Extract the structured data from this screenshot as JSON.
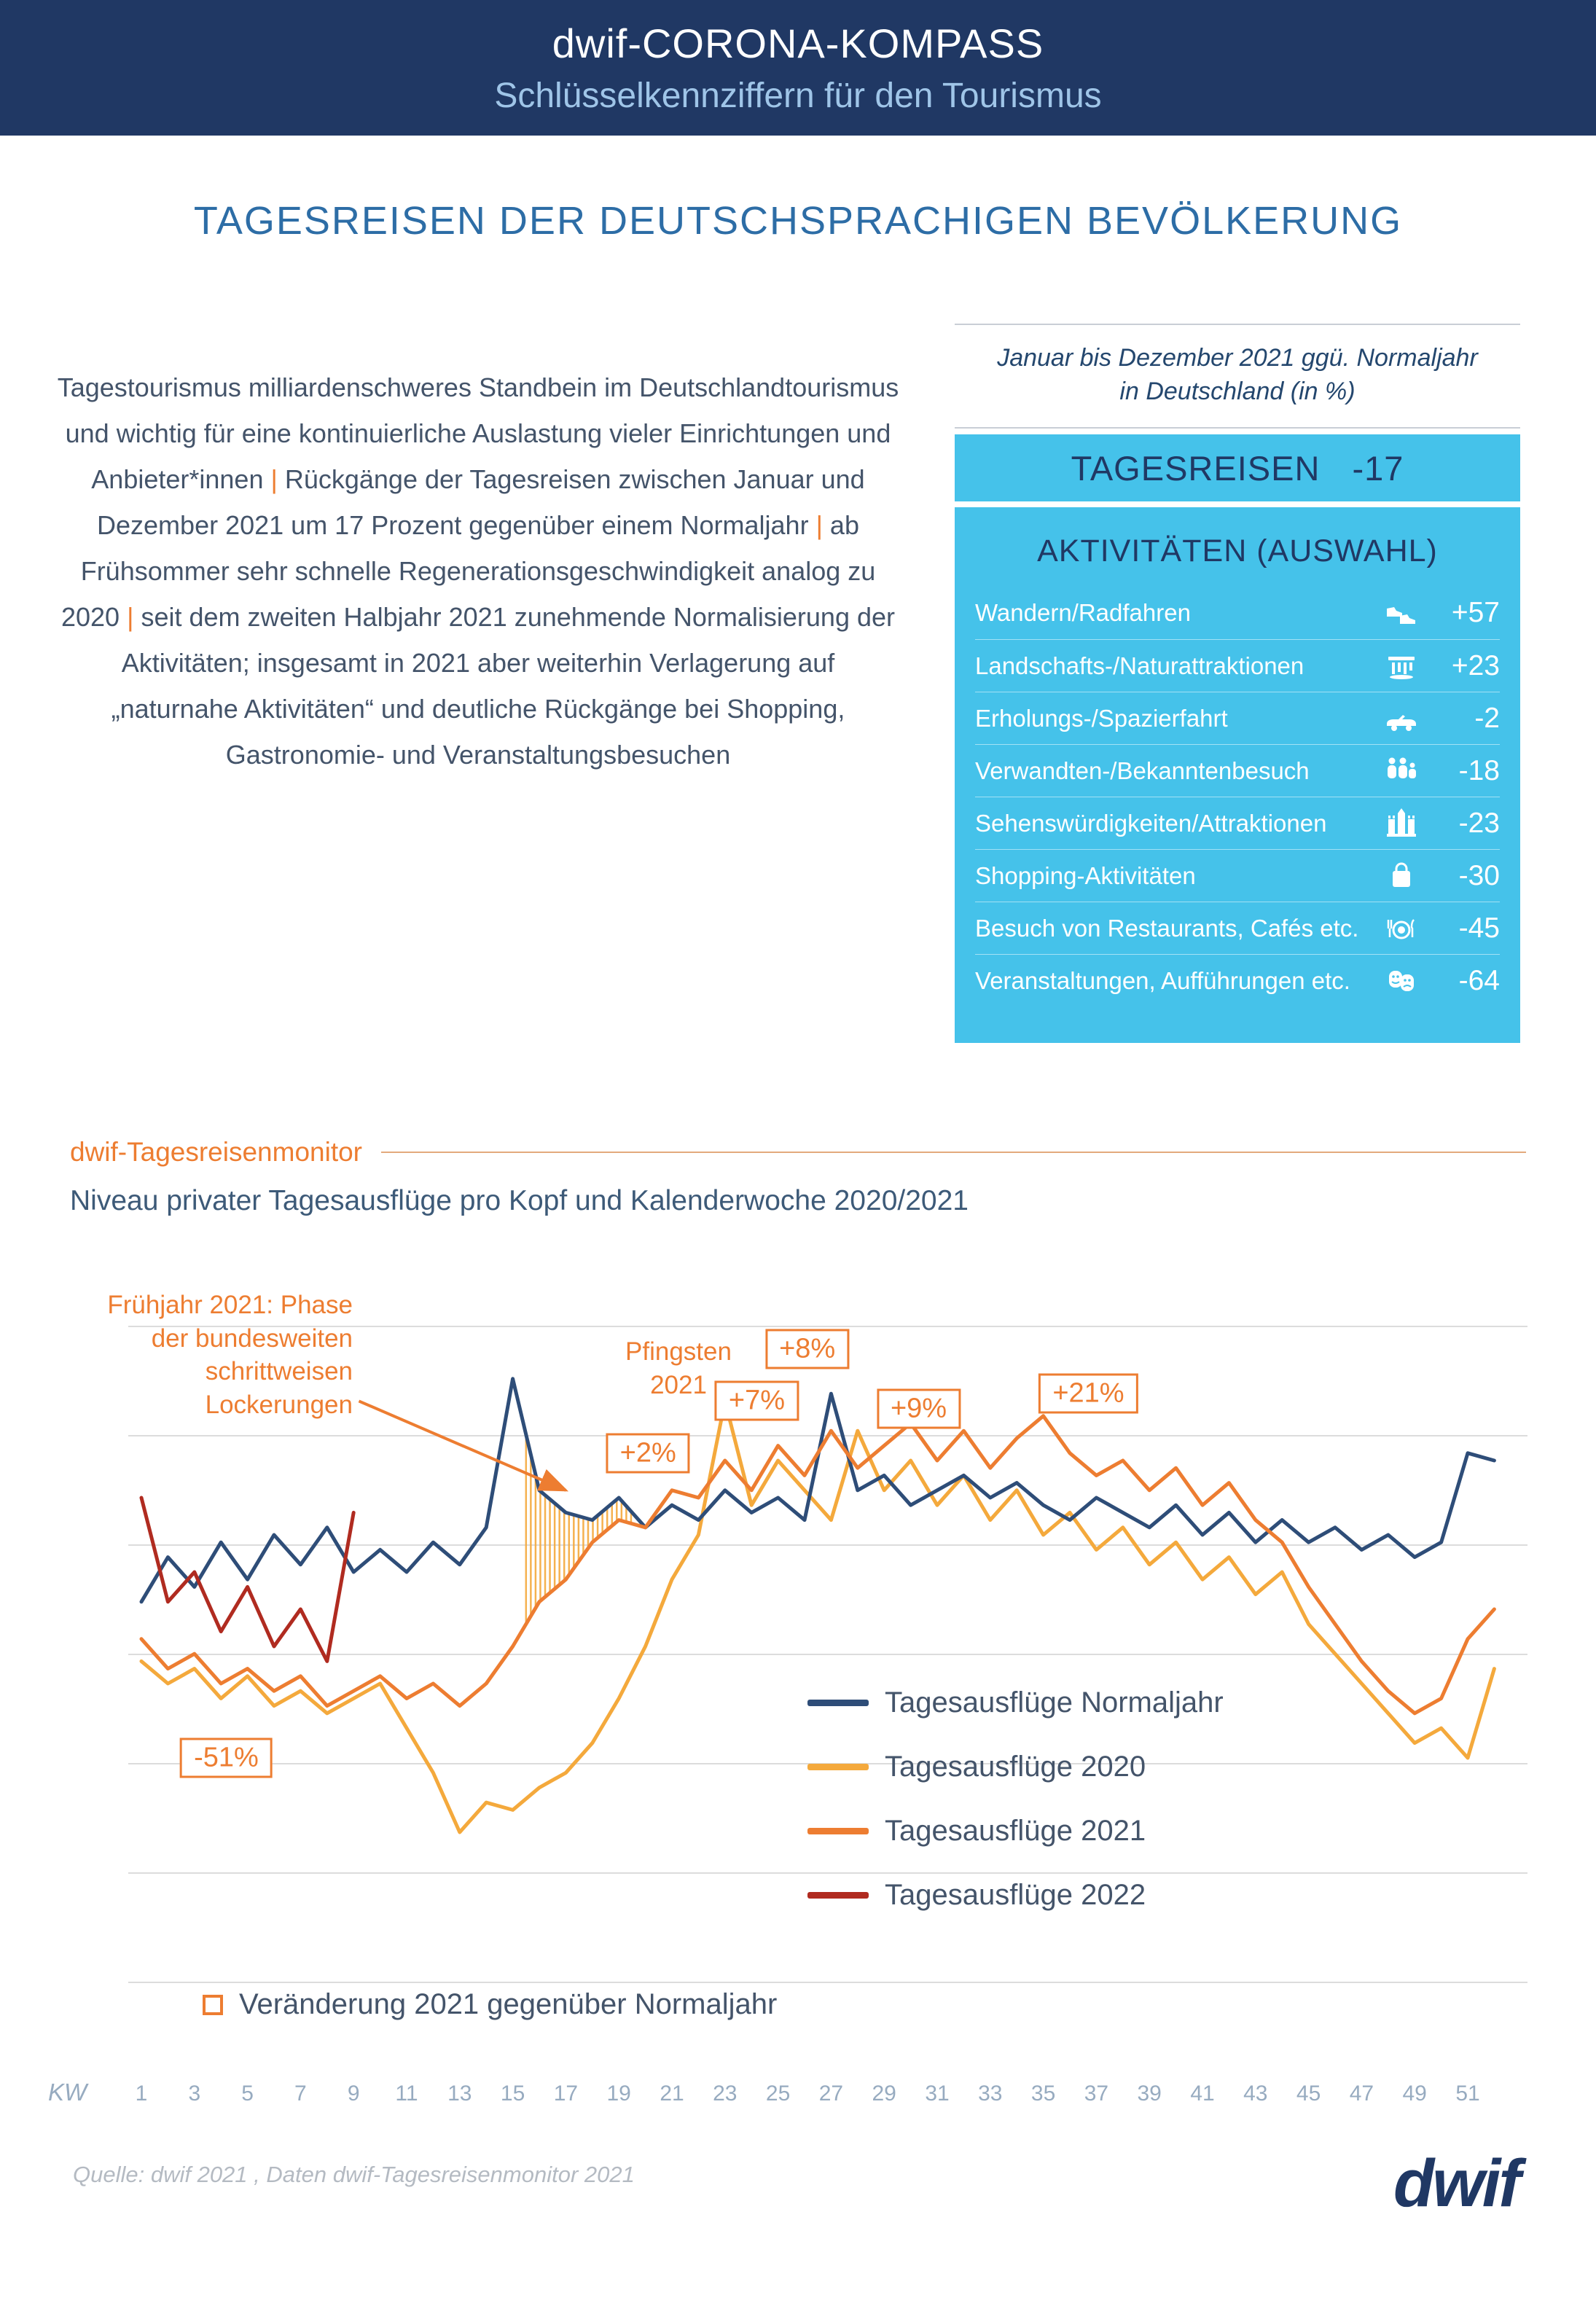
{
  "header": {
    "title": "dwif-CORONA-KOMPASS",
    "subtitle": "Schlüsselkennziffern für den Tourismus"
  },
  "page_title": "TAGESREISEN DER DEUTSCHSPRACHIGEN BEVÖLKERUNG",
  "intro": {
    "text": "Tagestourismus milliardenschweres Standbein im Deutschlandtourismus und wichtig für eine kontinuierliche Auslastung vieler Einrichtungen und Anbieter*innen | Rückgänge der Tagesreisen zwischen Januar und Dezember 2021 um 17 Prozent gegenüber einem Normaljahr | ab Frühsommer sehr schnelle Regenerationsgeschwindigkeit analog zu 2020 | seit dem zweiten Halbjahr 2021  zunehmende Normalisierung der Aktivitäten; insgesamt in 2021 aber weiterhin Verlagerung auf „naturnahe Aktivitäten“ und deutliche Rückgänge bei Shopping, Gastronomie- und Veranstaltungsbesuchen"
  },
  "panel": {
    "period_note_line1": "Januar bis Dezember 2021 ggü. Normaljahr",
    "period_note_line2": "in Deutschland (in %)",
    "total_label": "TAGESREISEN",
    "total_value": "-17",
    "activities_heading": "AKTIVITÄTEN (AUSWAHL)",
    "activities": [
      {
        "label": "Wandern/Radfahren",
        "icon": "hiking-boots-icon",
        "value": "+57"
      },
      {
        "label": "Landschafts-/Naturattraktionen",
        "icon": "waterfall-icon",
        "value": "+23"
      },
      {
        "label": "Erholungs-/Spazierfahrt",
        "icon": "car-icon",
        "value": "-2"
      },
      {
        "label": "Verwandten-/Bekanntenbesuch",
        "icon": "family-icon",
        "value": "-18"
      },
      {
        "label": "Sehenswürdigkeiten/Attraktionen",
        "icon": "castle-icon",
        "value": "-23"
      },
      {
        "label": "Shopping-Aktivitäten",
        "icon": "shopping-bag-icon",
        "value": "-30"
      },
      {
        "label": "Besuch von Restaurants, Cafés etc.",
        "icon": "restaurant-icon",
        "value": "-45"
      },
      {
        "label": "Veranstaltungen, Aufführungen etc.",
        "icon": "theater-masks-icon",
        "value": "-64"
      }
    ],
    "colors": {
      "panel_bg": "#45c2ea",
      "navy": "#203864"
    }
  },
  "monitor": {
    "kicker": "dwif-Tagesreisenmonitor",
    "subtitle": "Niveau privater Tagesausflüge pro Kopf und Kalenderwoche 2020/2021"
  },
  "chart_data": {
    "type": "line",
    "title": "Niveau privater Tagesausflüge pro Kopf und Kalenderwoche 2020/2021",
    "x_label": "KW",
    "x_unit": "Kalenderwoche",
    "x_range": [
      1,
      52
    ],
    "x_ticks": [
      1,
      3,
      5,
      7,
      9,
      11,
      13,
      15,
      17,
      19,
      21,
      23,
      25,
      27,
      29,
      31,
      33,
      35,
      37,
      39,
      41,
      43,
      45,
      47,
      49,
      51
    ],
    "ylim": [
      0,
      106
    ],
    "grid": true,
    "series": [
      {
        "name": "Tagesausflüge Normaljahr",
        "color": "#2e4d78",
        "values": [
          61,
          67,
          63,
          69,
          64,
          70,
          66,
          71,
          65,
          68,
          65,
          69,
          66,
          71,
          91,
          76,
          73,
          72,
          75,
          71,
          74,
          72,
          76,
          73,
          75,
          72,
          89,
          76,
          78,
          74,
          76,
          78,
          75,
          77,
          74,
          72,
          75,
          73,
          71,
          74,
          70,
          73,
          69,
          72,
          69,
          71,
          68,
          70,
          67,
          69,
          81,
          80
        ]
      },
      {
        "name": "Tagesausflüge  2020",
        "color": "#f4a93c",
        "values": [
          53,
          50,
          52,
          48,
          51,
          47,
          49,
          46,
          48,
          50,
          44,
          38,
          30,
          34,
          33,
          36,
          38,
          42,
          48,
          55,
          64,
          70,
          88,
          74,
          80,
          76,
          72,
          84,
          76,
          80,
          74,
          78,
          72,
          76,
          70,
          73,
          68,
          71,
          66,
          69,
          64,
          67,
          62,
          65,
          58,
          54,
          50,
          46,
          42,
          44,
          40,
          52
        ]
      },
      {
        "name": "Tagesausflüge  2021",
        "color": "#ed7d31",
        "values": [
          56,
          52,
          54,
          50,
          52,
          49,
          51,
          47,
          49,
          51,
          48,
          50,
          47,
          50,
          55,
          61,
          64,
          69,
          72,
          71,
          76,
          75,
          80,
          76,
          82,
          78,
          84,
          79,
          82,
          85,
          80,
          84,
          79,
          83,
          86,
          81,
          78,
          80,
          76,
          79,
          74,
          77,
          72,
          69,
          63,
          58,
          53,
          49,
          46,
          48,
          56,
          60
        ]
      },
      {
        "name": "Tagesausflüge  2022",
        "color": "#b02b20",
        "values": [
          75,
          61,
          65,
          57,
          63,
          55,
          60,
          53,
          73
        ]
      }
    ],
    "hatch": {
      "from_week": 15.5,
      "to_week": 19.6,
      "between": [
        "Tagesausflüge Normaljahr",
        "Tagesausflüge  2021"
      ]
    },
    "box_legend": "Veränderung 2021 gegenüber Normaljahr",
    "callouts": {
      "spring": "Frühjahr 2021: Phase der bundesweiten schrittweisen Lockerungen",
      "pentecost": "Pfingsten 2021",
      "spring_arrow": {
        "from_week": 9.2,
        "from_value": 88,
        "to_week": 17.0,
        "to_value": 76
      }
    },
    "change_boxes": [
      {
        "label": "-51%",
        "week": 4.2,
        "value": 40
      },
      {
        "label": "+2%",
        "week": 20.1,
        "value": 81
      },
      {
        "label": "+7%",
        "week": 24.2,
        "value": 88
      },
      {
        "label": "+8%",
        "week": 26.1,
        "value": 95
      },
      {
        "label": "+9%",
        "week": 30.3,
        "value": 87
      },
      {
        "label": "+21%",
        "week": 36.7,
        "value": 89
      }
    ]
  },
  "footer": {
    "source": "Quelle: dwif 2021 , Daten dwif-Tagesreisenmonitor 2021",
    "logo": "dwif"
  }
}
